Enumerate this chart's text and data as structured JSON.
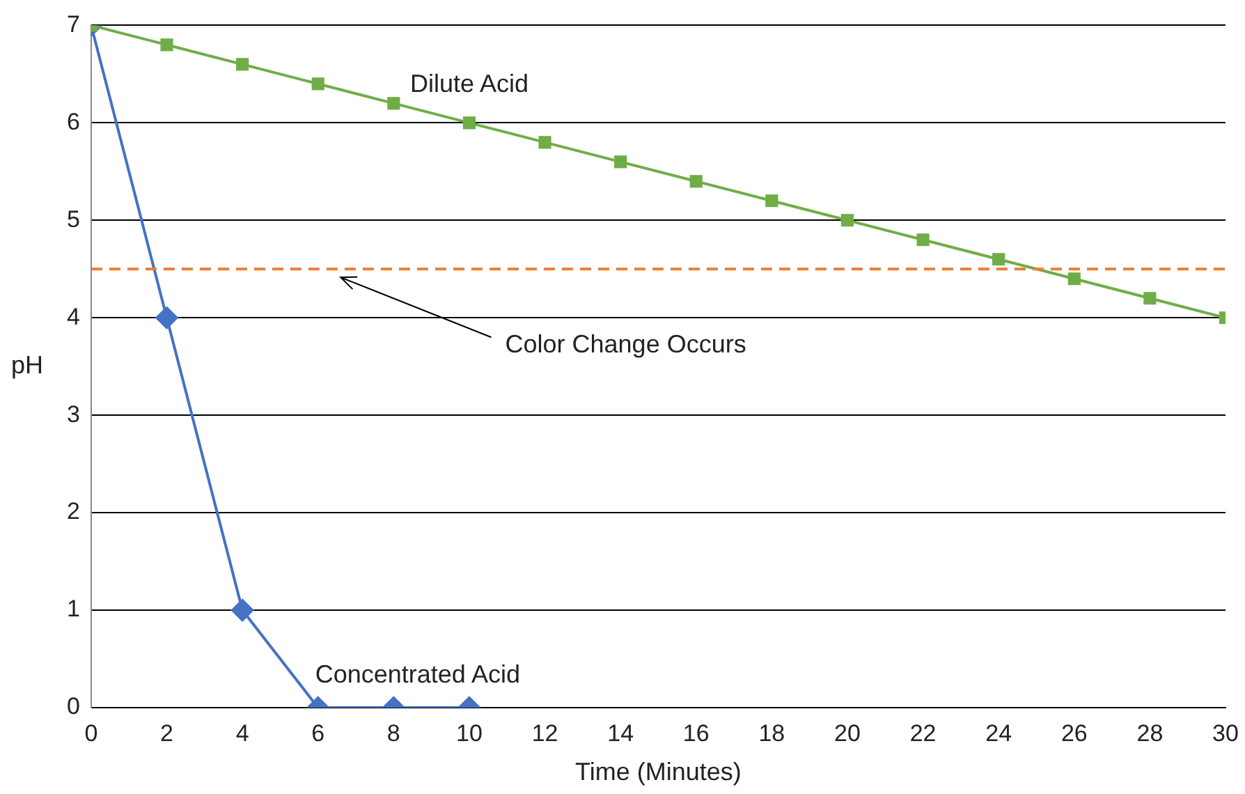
{
  "chart_data": {
    "type": "line",
    "xlabel": "Time (Minutes)",
    "ylabel": "pH",
    "xlim": [
      0,
      30
    ],
    "xticks": [
      0,
      2,
      4,
      6,
      8,
      10,
      12,
      14,
      16,
      18,
      20,
      22,
      24,
      26,
      28,
      30
    ],
    "ylim": [
      0,
      7
    ],
    "yticks": [
      0,
      1,
      2,
      3,
      4,
      5,
      6,
      7
    ],
    "grid": "y",
    "legend": false,
    "series": [
      {
        "name": "Dilute Acid",
        "color": "#70ad47",
        "marker": "square",
        "x": [
          0,
          2,
          4,
          6,
          8,
          10,
          12,
          14,
          16,
          18,
          20,
          22,
          24,
          26,
          28,
          30
        ],
        "values": [
          7,
          6.8,
          6.6,
          6.4,
          6.2,
          6,
          5.8,
          5.6,
          5.4,
          5.2,
          5,
          4.8,
          4.6,
          4.4,
          4.2,
          4
        ]
      },
      {
        "name": "Concentrated Acid",
        "color": "#4472c4",
        "marker": "diamond",
        "x": [
          0,
          2,
          4,
          6,
          8,
          10
        ],
        "values": [
          7,
          4,
          1,
          0,
          0,
          0
        ]
      }
    ],
    "ref_lines": [
      {
        "axis": "y",
        "value": 4.5,
        "label": "Color Change Occurs",
        "color": "#ed7d31",
        "line_style": "dashed"
      }
    ]
  }
}
